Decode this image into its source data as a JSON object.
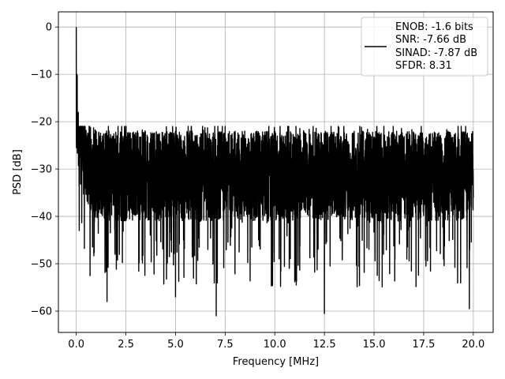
{
  "chart_data": {
    "type": "line",
    "title": "",
    "xlabel": "Frequency [MHz]",
    "ylabel": "PSD [dB]",
    "xlim": [
      -0.9,
      21.0
    ],
    "ylim": [
      -64.5,
      3.2
    ],
    "xticks": [
      0.0,
      2.5,
      5.0,
      7.5,
      10.0,
      12.5,
      15.0,
      17.5,
      20.0
    ],
    "xtick_labels": [
      "0.0",
      "2.5",
      "5.0",
      "7.5",
      "10.0",
      "12.5",
      "15.0",
      "17.5",
      "20.0"
    ],
    "yticks": [
      0,
      -10,
      -20,
      -30,
      -40,
      -50,
      -60
    ],
    "ytick_labels": [
      "0",
      "−10",
      "−20",
      "−30",
      "−40",
      "−50",
      "−60"
    ],
    "grid": true,
    "legend": {
      "placement": "top-right",
      "entries": [
        "ENOB: -1.6 bits",
        "SNR: -7.66 dB",
        "SINAD: -7.87 dB",
        "SFDR: 8.31"
      ]
    },
    "series": [
      {
        "color": "#000000",
        "noise_floor_db": -31,
        "noise_min_db": -61,
        "noise_max_db": -21,
        "x_range": [
          0.0,
          20.0
        ],
        "notable_points": [
          {
            "x": 0.0,
            "y": 0.0
          },
          {
            "x": 0.03,
            "y": -10
          },
          {
            "x": 0.1,
            "y": -18
          },
          {
            "x": 0.15,
            "y": -43
          },
          {
            "x": 1.55,
            "y": -58
          },
          {
            "x": 5.0,
            "y": -57
          },
          {
            "x": 7.05,
            "y": -61
          },
          {
            "x": 7.5,
            "y": -21
          },
          {
            "x": 12.5,
            "y": -60.5
          },
          {
            "x": 19.8,
            "y": -59.5
          },
          {
            "x": 20.0,
            "y": -36
          }
        ]
      }
    ]
  }
}
